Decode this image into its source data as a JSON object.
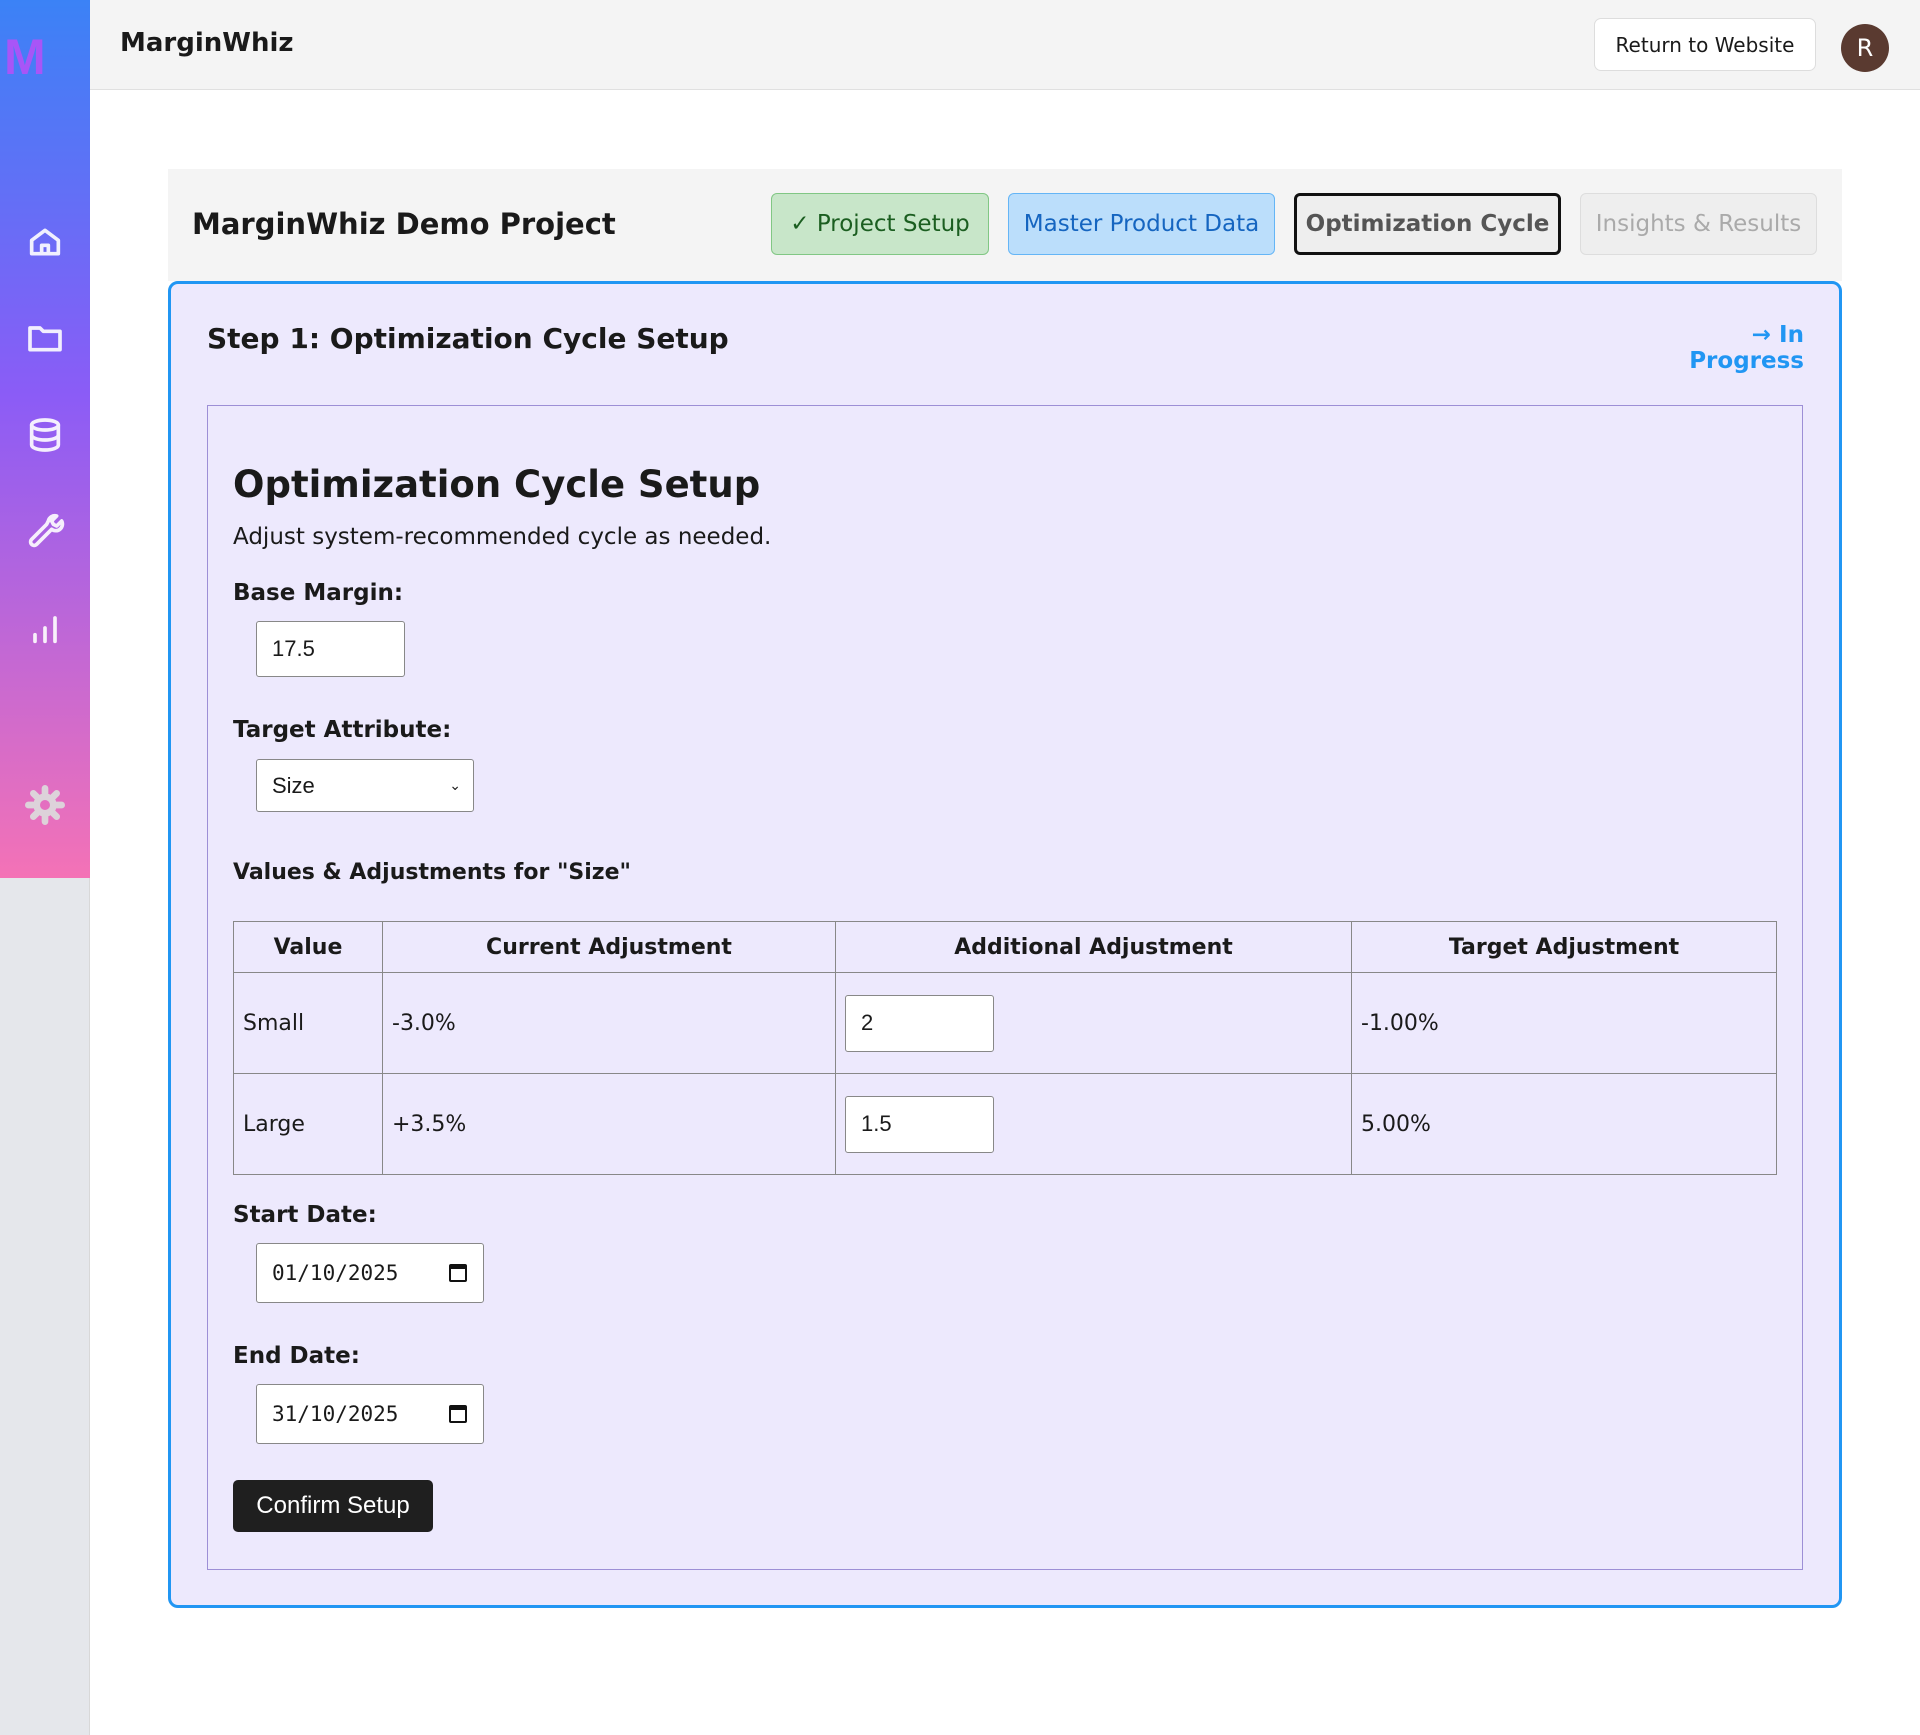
{
  "app": {
    "logo": "M",
    "title": "MarginWhiz",
    "return_label": "Return to Website",
    "avatar_initial": "R"
  },
  "sidebar": {
    "items": [
      {
        "icon": "home-icon"
      },
      {
        "icon": "folder-icon"
      },
      {
        "icon": "database-icon"
      },
      {
        "icon": "wrench-icon"
      },
      {
        "icon": "bar-chart-icon"
      },
      {
        "icon": "gear-icon"
      }
    ]
  },
  "project": {
    "title": "MarginWhiz Demo Project",
    "tabs": [
      {
        "label": "✓ Project Setup",
        "state": "completed",
        "bg": "#c8e6c9",
        "color": "#1b5e20"
      },
      {
        "label": "Master Product Data",
        "state": "available",
        "bg": "#bbdefb",
        "color": "#1565c0"
      },
      {
        "label": "Optimization Cycle",
        "state": "active",
        "bg": "#eeeeee",
        "color": "#555555"
      },
      {
        "label": "Insights & Results",
        "state": "disabled",
        "bg": "#eeeeee",
        "color": "#aaaaaa"
      }
    ]
  },
  "step": {
    "title": "Step 1: Optimization Cycle Setup",
    "status": "→ In Progress",
    "status_color": "#2196f3"
  },
  "form": {
    "heading": "Optimization Cycle Setup",
    "subtitle": "Adjust system-recommended cycle as needed.",
    "base_margin_label": "Base Margin:",
    "base_margin": "17.5",
    "target_attr_label": "Target Attribute:",
    "target_attr": "Size",
    "values_heading": "Values & Adjustments for \"Size\"",
    "table": {
      "headers": [
        "Value",
        "Current Adjustment",
        "Additional Adjustment",
        "Target Adjustment"
      ],
      "rows": [
        {
          "value": "Small",
          "current": "-3.0%",
          "additional": "2",
          "target": "-1.00%"
        },
        {
          "value": "Large",
          "current": "+3.5%",
          "additional": "1.5",
          "target": "5.00%"
        }
      ]
    },
    "start_label": "Start Date:",
    "start_date": "01/10/2025",
    "end_label": "End Date:",
    "end_date": "31/10/2025",
    "confirm_label": "Confirm Setup"
  }
}
